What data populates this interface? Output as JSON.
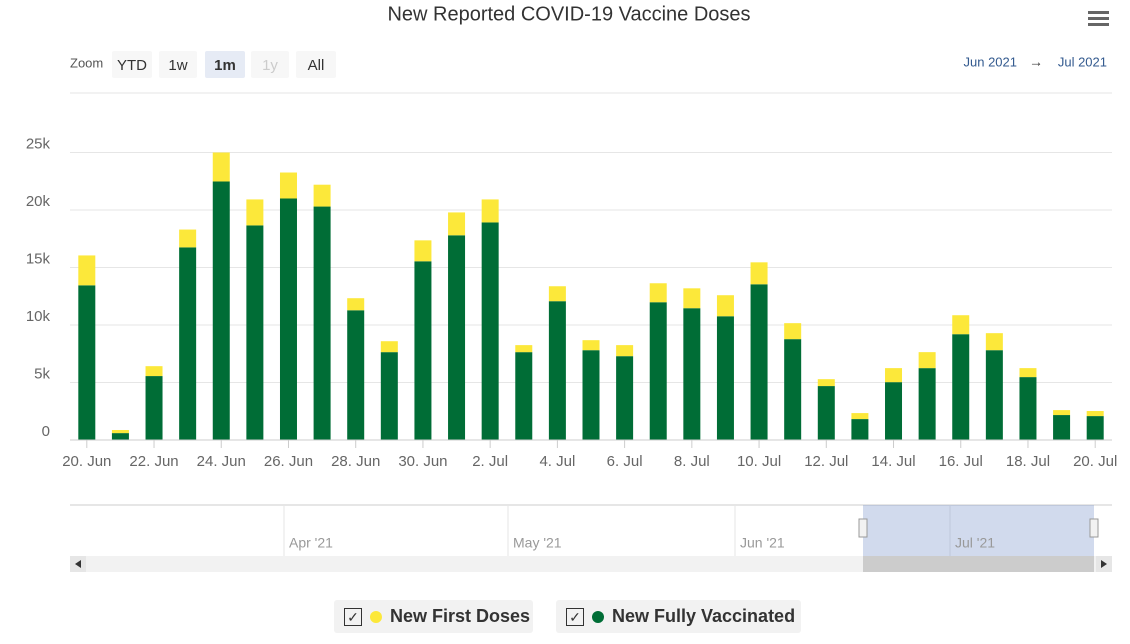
{
  "chart_data": {
    "type": "stacked-bar",
    "title": "New Reported COVID-19 Vaccine Doses",
    "categories": [
      "20. Jun",
      null,
      "22. Jun",
      null,
      "24. Jun",
      null,
      "26. Jun",
      null,
      "28. Jun",
      null,
      "30. Jun",
      null,
      "2. Jul",
      null,
      "4. Jul",
      null,
      "6. Jul",
      null,
      "8. Jul",
      null,
      "10. Jul",
      null,
      "12. Jul",
      null,
      "14. Jul",
      null,
      "16. Jul",
      null,
      "18. Jul",
      null,
      "20. Jul"
    ],
    "series": [
      {
        "name": "New Fully Vaccinated",
        "color": "#006d36",
        "values": [
          13450,
          600,
          5560,
          16750,
          22480,
          18660,
          21000,
          20300,
          11280,
          7640,
          15540,
          17800,
          18920,
          7640,
          12070,
          7810,
          7290,
          11980,
          11460,
          10760,
          13540,
          8770,
          4690,
          1820,
          5030,
          6250,
          9200,
          7810,
          5470,
          2170,
          2080
        ]
      },
      {
        "name": "New First Doses",
        "color": "#fce83a",
        "values": [
          2600,
          270,
          860,
          1550,
          2520,
          2260,
          2260,
          1900,
          1050,
          950,
          1820,
          1990,
          2000,
          610,
          1300,
          870,
          960,
          1650,
          1730,
          1830,
          1910,
          1390,
          600,
          520,
          1220,
          1390,
          1650,
          1480,
          780,
          430,
          440
        ]
      }
    ],
    "legend_order": [
      1,
      0
    ],
    "ylim": [
      0,
      30000
    ],
    "yticks": [
      0,
      {
        "value": 5000,
        "label": "5k"
      },
      {
        "value": 10000,
        "label": "10k"
      },
      {
        "value": 15000,
        "label": "15k"
      },
      {
        "value": 20000,
        "label": "20k"
      },
      {
        "value": 25000,
        "label": "25k"
      }
    ],
    "grid": true
  },
  "range_selector": {
    "zoom_label": "Zoom",
    "buttons": [
      "YTD",
      "1w",
      "1m",
      "1y",
      "All"
    ],
    "selected_index": 2,
    "disabled_index": 3,
    "from": "Jun 2021",
    "arrow": "→",
    "to": "Jul 2021"
  },
  "navigator": {
    "labels": [
      "Apr '21",
      "May '21",
      "Jun '21",
      "Jul '21"
    ]
  }
}
